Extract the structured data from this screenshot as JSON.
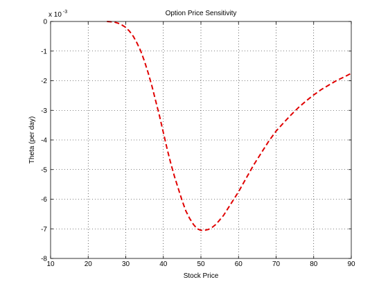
{
  "chart_data": {
    "type": "line",
    "title": "Option Price Sensitivity",
    "xlabel": "Stock Price",
    "ylabel": "Theta (per day)",
    "y_exponent_base": "x 10",
    "y_exponent_power": "-3",
    "xlim": [
      10,
      90
    ],
    "ylim": [
      -8,
      0
    ],
    "xticks": [
      10,
      20,
      30,
      40,
      50,
      60,
      70,
      80,
      90
    ],
    "yticks": [
      0,
      -1,
      -2,
      -3,
      -4,
      -5,
      -6,
      -7,
      -8
    ],
    "grid": true,
    "series": [
      {
        "color": "#e00000",
        "style": "dashed",
        "x": [
          25,
          27,
          28,
          29,
          30,
          31,
          32,
          33,
          34,
          35,
          36,
          37,
          38,
          39,
          40,
          41,
          42,
          43,
          44,
          45,
          46,
          47,
          48,
          49,
          50,
          51,
          52,
          53,
          54,
          55,
          56,
          57,
          58,
          59,
          60,
          62,
          64,
          66,
          68,
          70,
          72,
          74,
          76,
          78,
          80,
          82,
          84,
          86,
          88,
          90
        ],
        "y": [
          0.0,
          -0.02,
          -0.06,
          -0.12,
          -0.2,
          -0.33,
          -0.5,
          -0.73,
          -1.0,
          -1.35,
          -1.75,
          -2.2,
          -2.7,
          -3.2,
          -3.75,
          -4.3,
          -4.8,
          -5.25,
          -5.65,
          -6.05,
          -6.4,
          -6.65,
          -6.85,
          -7.0,
          -7.05,
          -7.05,
          -7.02,
          -6.95,
          -6.85,
          -6.7,
          -6.55,
          -6.35,
          -6.15,
          -5.95,
          -5.75,
          -5.3,
          -4.85,
          -4.45,
          -4.05,
          -3.7,
          -3.42,
          -3.15,
          -2.9,
          -2.68,
          -2.48,
          -2.3,
          -2.15,
          -2.0,
          -1.88,
          -1.75
        ]
      }
    ]
  }
}
